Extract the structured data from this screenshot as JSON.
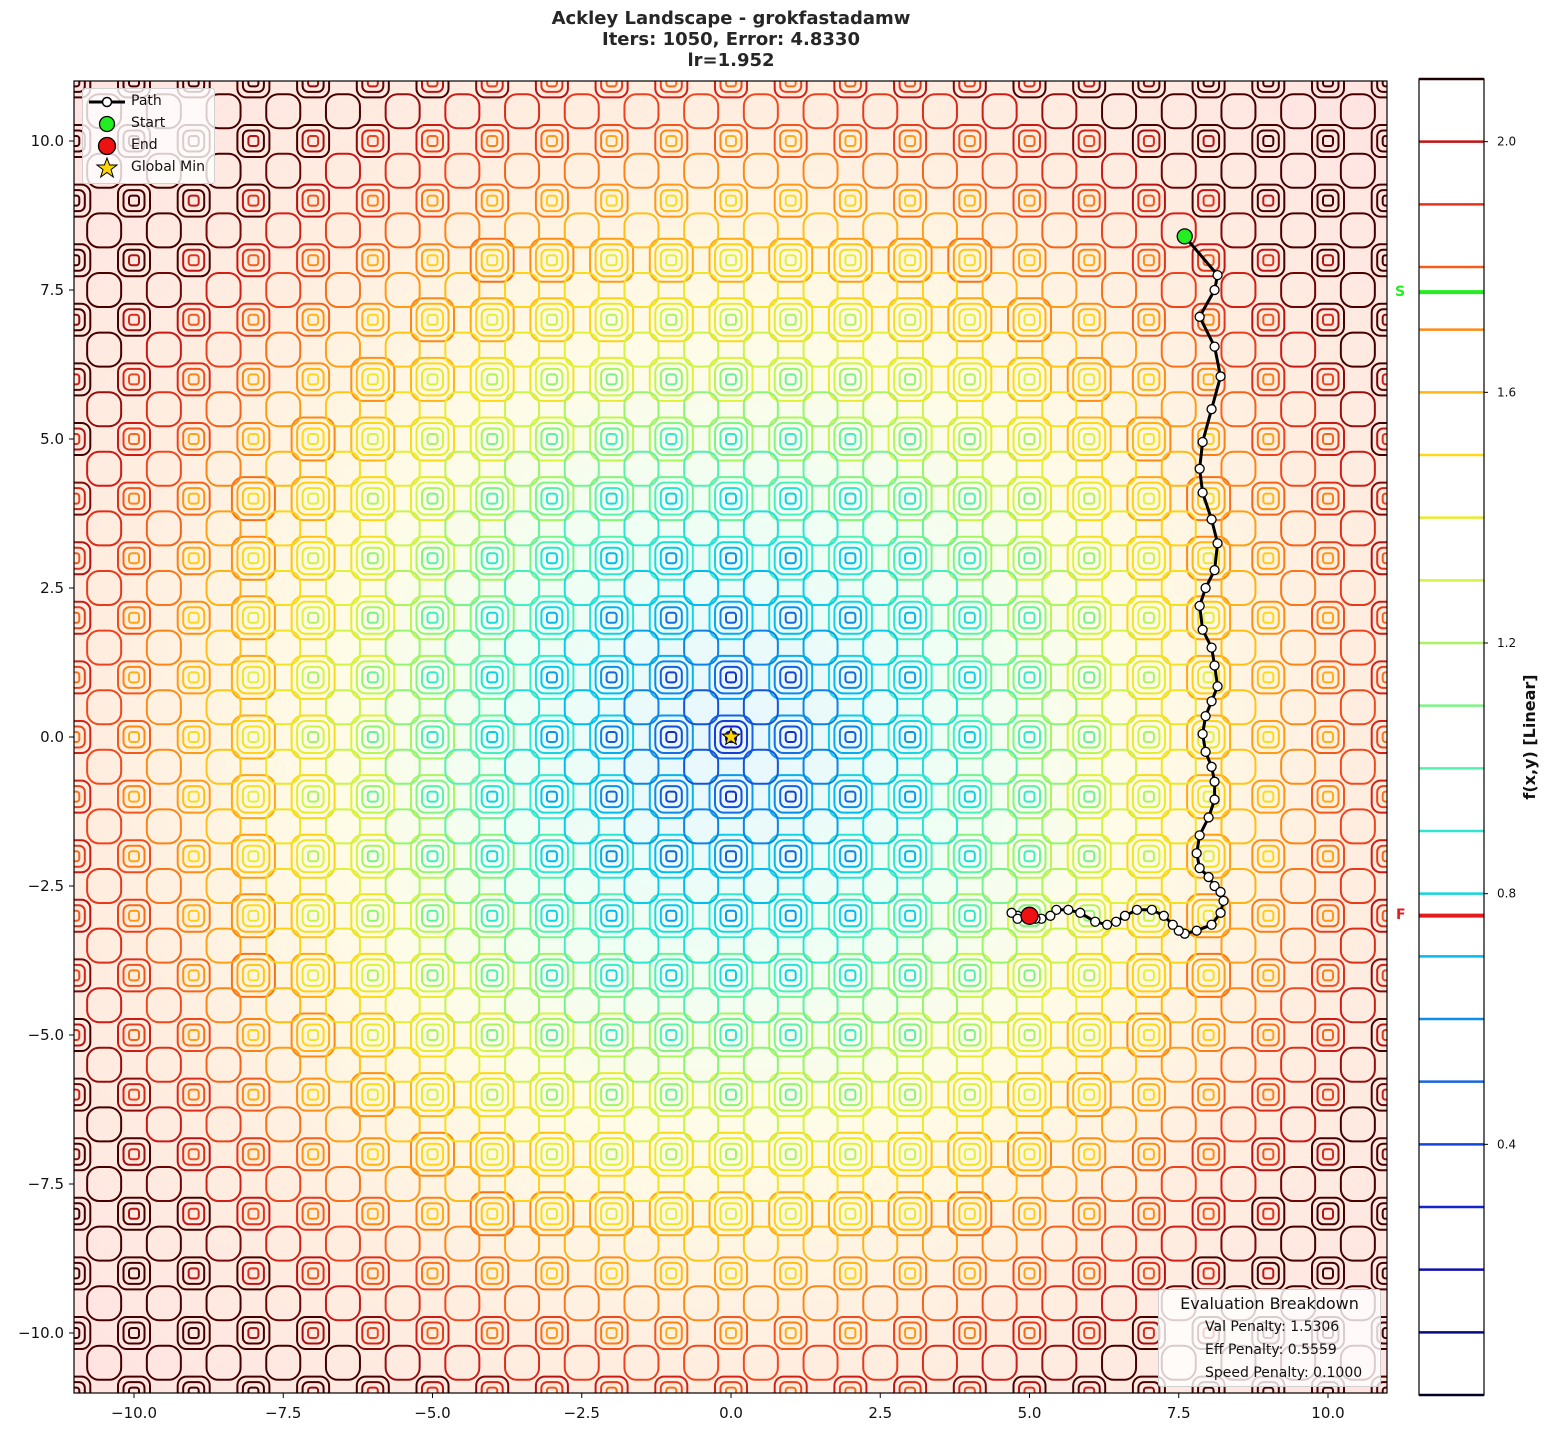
{
  "title": {
    "line1": "Ackley Landscape - grokfastadamw",
    "line2": "Iters: 1050, Error: 4.8330",
    "line3": "lr=1.952"
  },
  "legend": {
    "items": [
      {
        "label": "Path",
        "symbol": "line-with-white-circle"
      },
      {
        "label": "Start",
        "symbol": "green-circle"
      },
      {
        "label": "End",
        "symbol": "red-circle"
      },
      {
        "label": "Global Min",
        "symbol": "yellow-star"
      }
    ]
  },
  "evaluation": {
    "title": "Evaluation Breakdown",
    "lines": [
      "Val Penalty: 1.5306",
      "Eff Penalty: 0.5559",
      "Speed Penalty: 0.1000"
    ]
  },
  "colorbar": {
    "label": "f(x,y) [Linear]",
    "ticks": [
      "2.0",
      "1.6",
      "1.2",
      "0.8",
      "0.4"
    ],
    "start_marker": "S",
    "final_marker": "F",
    "start_color": "#22ee22",
    "final_color": "#e41a1c"
  },
  "colors": {
    "start": "#22ee22",
    "end": "#ee1111",
    "global_min": "#ffd700",
    "path": "#000000"
  },
  "chart_data": {
    "type": "contour",
    "title": "Ackley Landscape - grokfastadamw\nIters: 1050, Error: 4.8330\nlr=1.952",
    "xlabel": "",
    "ylabel": "",
    "xlim": [
      -11,
      11
    ],
    "ylim": [
      -11,
      11
    ],
    "xticks": [
      "-10.0",
      "-7.5",
      "-5.0",
      "-2.5",
      "0.0",
      "2.5",
      "5.0",
      "7.5",
      "10.0"
    ],
    "yticks": [
      "10.0",
      "7.5",
      "5.0",
      "2.5",
      "0.0",
      "-2.5",
      "-5.0",
      "-7.5",
      "-10.0"
    ],
    "colorbar_label": "f(x,y) [Linear]",
    "colorbar_range": [
      0.0,
      2.1
    ],
    "colorbar_ticks": [
      0.4,
      0.8,
      1.2,
      1.6,
      2.0
    ],
    "contour_levels": [
      0.0,
      0.1,
      0.2,
      0.3,
      0.4,
      0.5,
      0.6,
      0.7,
      0.8,
      0.9,
      1.0,
      1.1,
      1.2,
      1.3,
      1.4,
      1.5,
      1.6,
      1.7,
      1.8,
      1.9,
      2.0,
      2.1
    ],
    "colorbar_markers": [
      {
        "label": "S",
        "value": 1.76
      },
      {
        "label": "F",
        "value": 0.765
      }
    ],
    "global_min": [
      0.0,
      0.0
    ],
    "start": [
      7.6,
      8.4
    ],
    "end": [
      5.0,
      -3.0
    ],
    "path": [
      [
        7.6,
        8.4
      ],
      [
        8.15,
        7.75
      ],
      [
        8.1,
        7.5
      ],
      [
        7.85,
        7.05
      ],
      [
        8.1,
        6.55
      ],
      [
        8.2,
        6.05
      ],
      [
        8.05,
        5.5
      ],
      [
        7.9,
        4.95
      ],
      [
        7.85,
        4.5
      ],
      [
        7.9,
        4.1
      ],
      [
        8.05,
        3.65
      ],
      [
        8.15,
        3.25
      ],
      [
        8.1,
        2.8
      ],
      [
        7.95,
        2.5
      ],
      [
        7.85,
        2.2
      ],
      [
        7.9,
        1.8
      ],
      [
        8.05,
        1.5
      ],
      [
        8.1,
        1.2
      ],
      [
        8.15,
        0.85
      ],
      [
        8.05,
        0.6
      ],
      [
        7.95,
        0.35
      ],
      [
        7.9,
        0.05
      ],
      [
        7.95,
        -0.25
      ],
      [
        8.05,
        -0.5
      ],
      [
        8.1,
        -0.75
      ],
      [
        8.1,
        -1.05
      ],
      [
        8.0,
        -1.35
      ],
      [
        7.85,
        -1.65
      ],
      [
        7.8,
        -1.95
      ],
      [
        7.85,
        -2.2
      ],
      [
        8.0,
        -2.35
      ],
      [
        8.1,
        -2.5
      ],
      [
        8.2,
        -2.6
      ],
      [
        8.25,
        -2.75
      ],
      [
        8.2,
        -2.95
      ],
      [
        8.05,
        -3.15
      ],
      [
        7.8,
        -3.25
      ],
      [
        7.6,
        -3.3
      ],
      [
        7.5,
        -3.25
      ],
      [
        7.4,
        -3.15
      ],
      [
        7.25,
        -3.0
      ],
      [
        7.05,
        -2.9
      ],
      [
        6.8,
        -2.9
      ],
      [
        6.6,
        -3.0
      ],
      [
        6.45,
        -3.1
      ],
      [
        6.3,
        -3.15
      ],
      [
        6.1,
        -3.1
      ],
      [
        5.85,
        -2.95
      ],
      [
        5.65,
        -2.9
      ],
      [
        5.45,
        -2.9
      ],
      [
        5.35,
        -3.0
      ],
      [
        5.2,
        -3.05
      ],
      [
        5.0,
        -3.0
      ],
      [
        4.8,
        -3.0
      ],
      [
        4.7,
        -2.95
      ],
      [
        4.8,
        -3.05
      ],
      [
        5.1,
        -3.05
      ],
      [
        5.0,
        -3.0
      ]
    ],
    "annotations": [
      {
        "title": "Evaluation Breakdown",
        "items": [
          "Val Penalty: 1.5306",
          "Eff Penalty: 0.5559",
          "Speed Penalty: 0.1000"
        ],
        "position": "lower right"
      }
    ],
    "legend": [
      "Path",
      "Start",
      "End",
      "Global Min"
    ],
    "legend_position": "upper left",
    "grid": false
  }
}
